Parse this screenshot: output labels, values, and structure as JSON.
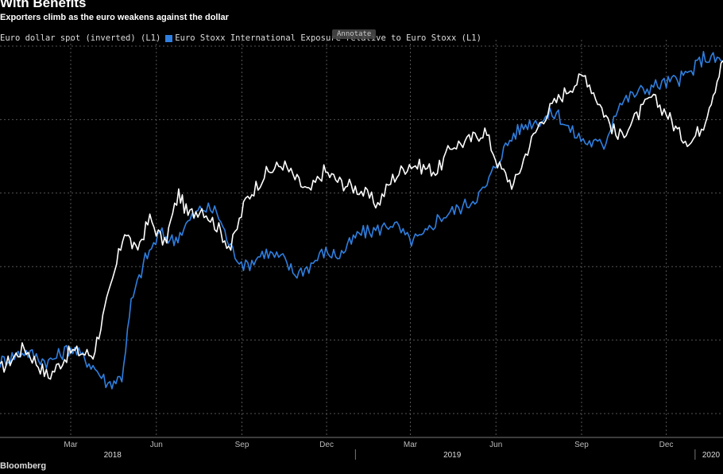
{
  "header": {
    "title": "With Benefits",
    "subtitle": "Exporters climb as the euro weakens against the dollar"
  },
  "legend": {
    "items": [
      {
        "label": "Euro dollar spot (inverted) (L1)",
        "color": "#ffffff"
      },
      {
        "label": "Euro Stoxx International Exposure relative to Euro Stoxx (L1)",
        "color": "#2f7fe0"
      }
    ],
    "annotate_label": "Annotate"
  },
  "footer": {
    "source": "Bloomberg"
  },
  "chart_data": {
    "type": "line",
    "xlabel": "",
    "ylabel": "",
    "grid": true,
    "x_ticks": [
      "Mar",
      "Jun",
      "Sep",
      "Dec",
      "Mar",
      "Jun",
      "Sep",
      "Dec"
    ],
    "year_labels": [
      "2018",
      "2019",
      "2020"
    ],
    "x_range": [
      "2017-12-15",
      "2020-01-31"
    ],
    "y_range": [
      0,
      100
    ],
    "series": [
      {
        "name": "Euro dollar spot (inverted) (L1)",
        "color": "#ffffff",
        "values": [
          [
            "2017-12-15",
            12
          ],
          [
            "2018-01-10",
            18
          ],
          [
            "2018-02-05",
            10
          ],
          [
            "2018-03-01",
            17
          ],
          [
            "2018-03-25",
            16
          ],
          [
            "2018-04-15",
            36
          ],
          [
            "2018-04-28",
            50
          ],
          [
            "2018-05-10",
            44
          ],
          [
            "2018-05-25",
            53
          ],
          [
            "2018-06-10",
            46
          ],
          [
            "2018-06-25",
            60
          ],
          [
            "2018-07-05",
            54
          ],
          [
            "2018-07-20",
            56
          ],
          [
            "2018-08-05",
            51
          ],
          [
            "2018-08-20",
            45
          ],
          [
            "2018-09-05",
            58
          ],
          [
            "2018-09-25",
            65
          ],
          [
            "2018-10-15",
            68
          ],
          [
            "2018-10-28",
            64
          ],
          [
            "2018-11-12",
            60
          ],
          [
            "2018-11-28",
            66
          ],
          [
            "2018-12-15",
            63
          ],
          [
            "2019-01-05",
            61
          ],
          [
            "2019-01-25",
            57
          ],
          [
            "2019-02-10",
            64
          ],
          [
            "2019-02-28",
            68
          ],
          [
            "2019-03-15",
            67
          ],
          [
            "2019-03-30",
            66
          ],
          [
            "2019-04-15",
            73
          ],
          [
            "2019-05-01",
            74
          ],
          [
            "2019-05-20",
            77
          ],
          [
            "2019-06-05",
            67
          ],
          [
            "2019-06-20",
            62
          ],
          [
            "2019-07-05",
            72
          ],
          [
            "2019-07-20",
            80
          ],
          [
            "2019-08-05",
            85
          ],
          [
            "2019-08-20",
            89
          ],
          [
            "2019-09-05",
            92
          ],
          [
            "2019-09-25",
            82
          ],
          [
            "2019-10-10",
            75
          ],
          [
            "2019-10-28",
            80
          ],
          [
            "2019-11-15",
            86
          ],
          [
            "2019-12-01",
            82
          ],
          [
            "2019-12-15",
            76
          ],
          [
            "2019-12-28",
            74
          ],
          [
            "2020-01-10",
            79
          ],
          [
            "2020-01-31",
            96
          ]
        ]
      },
      {
        "name": "Euro Stoxx International Exposure relative to Euro Stoxx (L1)",
        "color": "#2f7fe0",
        "values": [
          [
            "2017-12-15",
            14
          ],
          [
            "2018-01-10",
            17
          ],
          [
            "2018-02-05",
            14
          ],
          [
            "2018-03-01",
            18
          ],
          [
            "2018-03-25",
            13
          ],
          [
            "2018-04-10",
            8
          ],
          [
            "2018-04-25",
            10
          ],
          [
            "2018-05-05",
            30
          ],
          [
            "2018-05-20",
            42
          ],
          [
            "2018-06-05",
            49
          ],
          [
            "2018-06-20",
            47
          ],
          [
            "2018-07-05",
            52
          ],
          [
            "2018-07-20",
            56
          ],
          [
            "2018-08-05",
            55
          ],
          [
            "2018-08-20",
            45
          ],
          [
            "2018-09-05",
            40
          ],
          [
            "2018-09-25",
            44
          ],
          [
            "2018-10-15",
            42
          ],
          [
            "2018-10-28",
            38
          ],
          [
            "2018-11-12",
            40
          ],
          [
            "2018-11-28",
            44
          ],
          [
            "2018-12-15",
            43
          ],
          [
            "2019-01-05",
            49
          ],
          [
            "2019-01-25",
            50
          ],
          [
            "2019-02-10",
            52
          ],
          [
            "2019-02-28",
            47
          ],
          [
            "2019-03-15",
            48
          ],
          [
            "2019-03-30",
            53
          ],
          [
            "2019-04-15",
            55
          ],
          [
            "2019-05-01",
            57
          ],
          [
            "2019-05-20",
            61
          ],
          [
            "2019-06-05",
            70
          ],
          [
            "2019-06-20",
            76
          ],
          [
            "2019-07-05",
            79
          ],
          [
            "2019-07-20",
            80
          ],
          [
            "2019-08-05",
            82
          ],
          [
            "2019-08-20",
            77
          ],
          [
            "2019-09-05",
            74
          ],
          [
            "2019-09-25",
            73
          ],
          [
            "2019-10-10",
            84
          ],
          [
            "2019-10-28",
            87
          ],
          [
            "2019-11-15",
            89
          ],
          [
            "2019-12-01",
            90
          ],
          [
            "2019-12-15",
            91
          ],
          [
            "2019-12-28",
            93
          ],
          [
            "2020-01-10",
            97
          ],
          [
            "2020-01-31",
            96
          ]
        ]
      }
    ]
  }
}
